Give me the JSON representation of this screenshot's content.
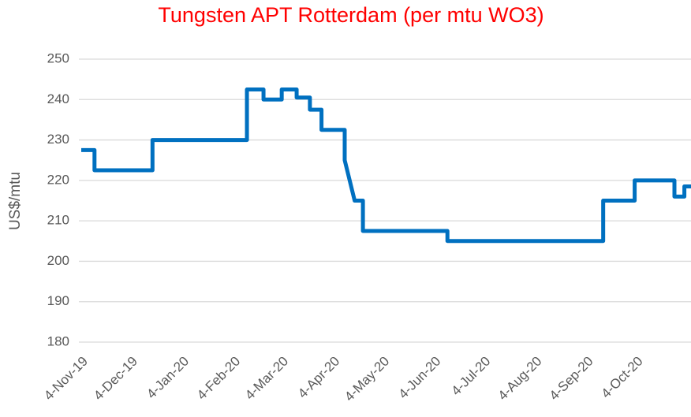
{
  "chart_data": {
    "type": "line",
    "title": "Tungsten APT Rotterdam (per mtu WO3)",
    "y_label": "US$/mtu",
    "x": [
      "2019-11-04",
      "2019-11-12",
      "2019-11-12",
      "2019-12-17",
      "2019-12-17",
      "2020-02-12",
      "2020-02-12",
      "2020-02-22",
      "2020-02-22",
      "2020-03-04",
      "2020-03-04",
      "2020-03-13",
      "2020-03-13",
      "2020-03-21",
      "2020-03-21",
      "2020-03-28",
      "2020-03-28",
      "2020-04-11",
      "2020-04-11",
      "2020-04-17",
      "2020-04-22",
      "2020-04-22",
      "2020-06-12",
      "2020-06-12",
      "2020-09-14",
      "2020-09-14",
      "2020-10-03",
      "2020-10-03",
      "2020-10-27",
      "2020-10-27",
      "2020-11-02",
      "2020-11-02",
      "2020-11-06"
    ],
    "series": [
      {
        "name": "Tungsten APT Rotterdam",
        "color": "#0070c0",
        "values": [
          227.5,
          227.5,
          222.5,
          222.5,
          230,
          230,
          242.5,
          242.5,
          240,
          240,
          242.5,
          242.5,
          240.5,
          240.5,
          237.5,
          237.5,
          232.5,
          232.5,
          225,
          215,
          215,
          207.5,
          207.5,
          205,
          205,
          215,
          215,
          220,
          220,
          216,
          216,
          218.5,
          218.5
        ]
      }
    ],
    "xlim": [
      "2019-11-04",
      "2020-11-06"
    ],
    "xticks": [
      {
        "value": "2019-11-04",
        "label": "4-Nov-19"
      },
      {
        "value": "2019-12-04",
        "label": "4-Dec-19"
      },
      {
        "value": "2020-01-04",
        "label": "4-Jan-20"
      },
      {
        "value": "2020-02-04",
        "label": "4-Feb-20"
      },
      {
        "value": "2020-03-04",
        "label": "4-Mar-20"
      },
      {
        "value": "2020-04-04",
        "label": "4-Apr-20"
      },
      {
        "value": "2020-05-04",
        "label": "4-May-20"
      },
      {
        "value": "2020-06-04",
        "label": "4-Jun-20"
      },
      {
        "value": "2020-07-04",
        "label": "4-Jul-20"
      },
      {
        "value": "2020-08-04",
        "label": "4-Aug-20"
      },
      {
        "value": "2020-09-04",
        "label": "4-Sep-20"
      },
      {
        "value": "2020-10-04",
        "label": "4-Oct-20"
      }
    ],
    "ylim": [
      180,
      250
    ],
    "yticks": [
      180,
      190,
      200,
      210,
      220,
      230,
      240,
      250
    ],
    "grid": true
  }
}
